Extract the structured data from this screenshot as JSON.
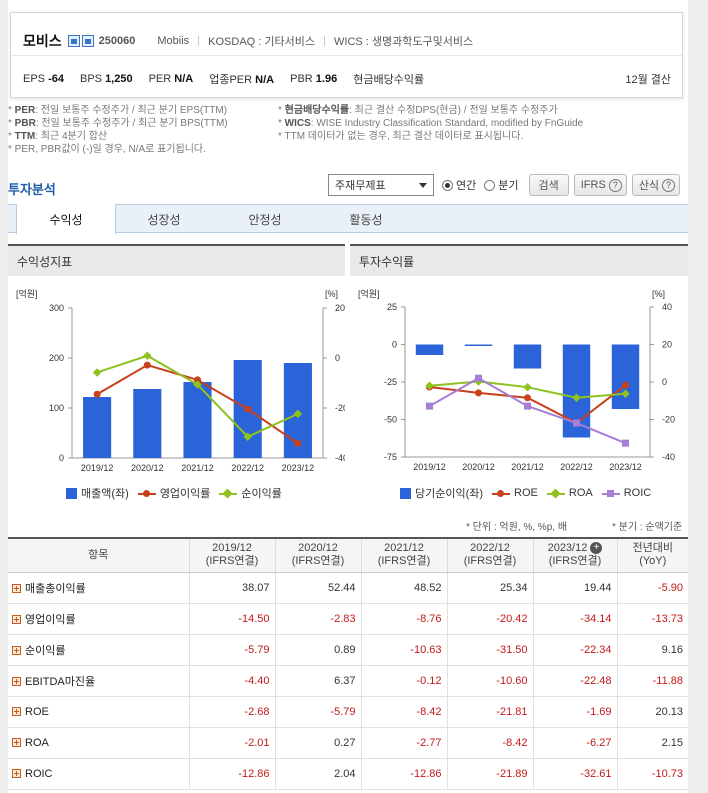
{
  "company": {
    "name": "모비스",
    "code": "250060",
    "name_en": "Mobiis",
    "market": "KOSDAQ : 기타서비스",
    "wics": "WICS : 생명과학도구및서비스"
  },
  "metrics": [
    {
      "label": "EPS",
      "value": "-64"
    },
    {
      "label": "BPS",
      "value": "1,250"
    },
    {
      "label": "PER",
      "value": "N/A"
    },
    {
      "label": "업종PER",
      "value": "N/A"
    },
    {
      "label": "PBR",
      "value": "1.96"
    },
    {
      "label": "현금배당수익률",
      "value": ""
    }
  ],
  "settle": "12월 결산",
  "notes_left": [
    {
      "key": "PER",
      "text": ": 전일 보통주 수정주가 / 최근 분기 EPS(TTM)"
    },
    {
      "key": "PBR",
      "text": ": 전일 보통주 수정주가 / 최근 분기 BPS(TTM)"
    },
    {
      "key": "TTM",
      "text": ": 최근 4분기 합산"
    },
    {
      "key": "",
      "text": "PER, PBR값이 (-)일 경우, N/A로 표기됩니다."
    }
  ],
  "notes_right": [
    {
      "key": "현금배당수익률",
      "text": ": 최근 결산 수정DPS(현금) / 전일 보통주 수정주가"
    },
    {
      "key": "WICS",
      "text": ": WISE Industry Classification Standard, modified by FnGuide"
    },
    {
      "key": "",
      "text": "TTM 데이터가 없는 경우, 최근 결산 데이터로 표시됩니다."
    }
  ],
  "section_title": "투자분석",
  "controls": {
    "select_value": "주재무제표",
    "radio_annual": "연간",
    "radio_quarter": "분기",
    "search": "검색",
    "ifrs": "IFRS",
    "formula": "산식"
  },
  "tabs": [
    "수익성",
    "성장성",
    "안정성",
    "활동성"
  ],
  "chart_left_title": "수익성지표",
  "chart_right_title": "투자수익률",
  "units_text": "* 단위 : 억원, %, %p, 배",
  "quarter_text": "* 분기 : 순액기준",
  "table": {
    "header_item": "항목",
    "columns": [
      {
        "period": "2019/12",
        "basis": "(IFRS연결)"
      },
      {
        "period": "2020/12",
        "basis": "(IFRS연결)"
      },
      {
        "period": "2021/12",
        "basis": "(IFRS연결)"
      },
      {
        "period": "2022/12",
        "basis": "(IFRS연결)"
      },
      {
        "period": "2023/12",
        "basis": "(IFRS연결)"
      },
      {
        "period": "전년대비",
        "basis": "(YoY)"
      }
    ],
    "rows": [
      {
        "label": "매출총이익률",
        "values": [
          "38.07",
          "52.44",
          "48.52",
          "25.34",
          "19.44",
          "-5.90"
        ]
      },
      {
        "label": "영업이익률",
        "values": [
          "-14.50",
          "-2.83",
          "-8.76",
          "-20.42",
          "-34.14",
          "-13.73"
        ]
      },
      {
        "label": "순이익률",
        "values": [
          "-5.79",
          "0.89",
          "-10.63",
          "-31.50",
          "-22.34",
          "9.16"
        ]
      },
      {
        "label": "EBITDA마진율",
        "values": [
          "-4.40",
          "6.37",
          "-0.12",
          "-10.60",
          "-22.48",
          "-11.88"
        ]
      },
      {
        "label": "ROE",
        "values": [
          "-2.68",
          "-5.79",
          "-8.42",
          "-21.81",
          "-1.69",
          "20.13"
        ]
      },
      {
        "label": "ROA",
        "values": [
          "-2.01",
          "0.27",
          "-2.77",
          "-8.42",
          "-6.27",
          "2.15"
        ]
      },
      {
        "label": "ROIC",
        "values": [
          "-12.86",
          "2.04",
          "-12.86",
          "-21.89",
          "-32.61",
          "-10.73"
        ]
      }
    ]
  },
  "chart_data": [
    {
      "type": "bar",
      "title": "수익성지표",
      "categories": [
        "2019/12",
        "2020/12",
        "2021/12",
        "2022/12",
        "2023/12"
      ],
      "left_unit": "[억원]",
      "right_unit": "[%]",
      "ylim_left": [
        0,
        300
      ],
      "yticks_left": [
        "300",
        "200",
        "100",
        "0"
      ],
      "ylim_right": [
        -40,
        20
      ],
      "yticks_right": [
        "20",
        "0",
        "-20",
        "-40"
      ],
      "bar_color": "#2b63d9",
      "series": [
        {
          "name": "매출액(좌)",
          "kind": "bar",
          "axis": "left",
          "values": [
            122,
            138,
            152,
            196,
            190
          ]
        },
        {
          "name": "영업이익률",
          "kind": "line",
          "axis": "right",
          "color": "#c8401c",
          "marker": "circle",
          "values": [
            -14.5,
            -2.83,
            -8.76,
            -20.42,
            -34.14
          ]
        },
        {
          "name": "순이익률",
          "kind": "line",
          "axis": "right",
          "color": "#8dc21f",
          "marker": "diamond",
          "values": [
            -5.79,
            0.89,
            -10.63,
            -31.5,
            -22.34
          ]
        }
      ]
    },
    {
      "type": "bar",
      "title": "투자수익률",
      "categories": [
        "2019/12",
        "2020/12",
        "2021/12",
        "2022/12",
        "2023/12"
      ],
      "left_unit": "[억원]",
      "right_unit": "[%]",
      "ylim_left": [
        -75,
        25
      ],
      "yticks_left": [
        "25",
        "0",
        "-25",
        "-50",
        "-75"
      ],
      "ylim_right": [
        -40,
        40
      ],
      "yticks_right": [
        "40",
        "20",
        "0",
        "-20",
        "-40"
      ],
      "bar_color": "#2b63d9",
      "series": [
        {
          "name": "당기순이익(좌)",
          "kind": "bar",
          "axis": "left",
          "values": [
            -7,
            -1,
            -16,
            -62,
            -43
          ]
        },
        {
          "name": "ROE",
          "kind": "line",
          "axis": "right",
          "color": "#c8401c",
          "marker": "circle",
          "values": [
            -2.68,
            -5.79,
            -8.42,
            -21.81,
            -1.69
          ]
        },
        {
          "name": "ROA",
          "kind": "line",
          "axis": "right",
          "color": "#8dc21f",
          "marker": "diamond",
          "values": [
            -2.01,
            0.27,
            -2.77,
            -8.42,
            -6.27
          ]
        },
        {
          "name": "ROIC",
          "kind": "line",
          "axis": "right",
          "color": "#a67ed6",
          "marker": "square",
          "values": [
            -12.86,
            2.04,
            -12.86,
            -21.89,
            -32.61
          ]
        }
      ]
    }
  ]
}
